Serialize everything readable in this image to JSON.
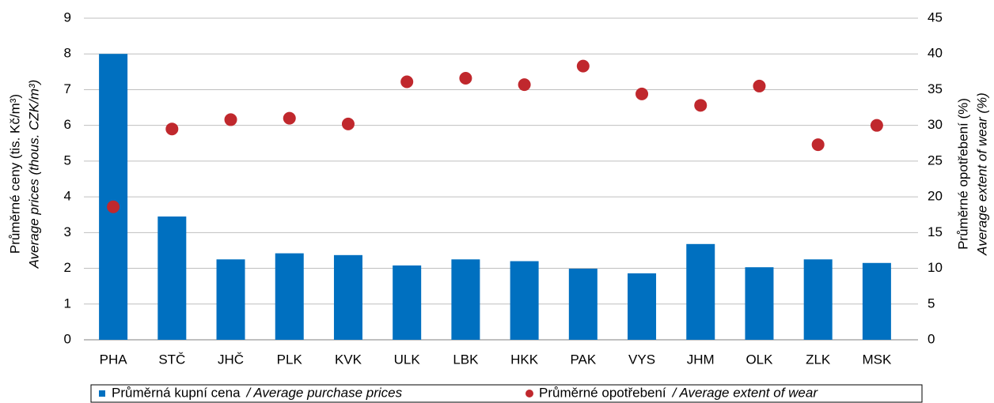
{
  "chart_data": {
    "type": "bar",
    "categories": [
      "PHA",
      "STČ",
      "JHČ",
      "PLK",
      "KVK",
      "ULK",
      "LBK",
      "HKK",
      "PAK",
      "VYS",
      "JHM",
      "OLK",
      "ZLK",
      "MSK"
    ],
    "series": [
      {
        "name": "Průměrná kupní cena",
        "name_en": "/ Average purchase prices",
        "type": "bar",
        "color": "#0070c0",
        "values": [
          8.0,
          3.45,
          2.25,
          2.42,
          2.37,
          2.08,
          2.25,
          2.2,
          1.99,
          1.86,
          2.68,
          2.03,
          2.25,
          2.15
        ]
      },
      {
        "name": "Průměrné opotřebení",
        "name_en": "/ Average extent of wear",
        "type": "scatter",
        "color": "#c0282d",
        "axis": "y2",
        "values": [
          18.6,
          29.5,
          30.8,
          31.0,
          30.2,
          36.1,
          36.6,
          35.7,
          38.3,
          34.4,
          32.8,
          35.5,
          27.3,
          30.0
        ]
      }
    ],
    "ylabel": [
      "Průměrné ceny (tis. Kč/m³)",
      "Average prices (thous. CZK/m³)"
    ],
    "y2label": [
      "Průměrné opotřebení (%)",
      "Average extent of wear (%)"
    ],
    "ylim": [
      0,
      9
    ],
    "yticks": [
      0,
      1,
      2,
      3,
      4,
      5,
      6,
      7,
      8,
      9
    ],
    "y2lim": [
      0,
      45
    ],
    "y2ticks": [
      0,
      5,
      10,
      15,
      20,
      25,
      30,
      35,
      40,
      45
    ],
    "grid": true,
    "legend": "bottom"
  }
}
